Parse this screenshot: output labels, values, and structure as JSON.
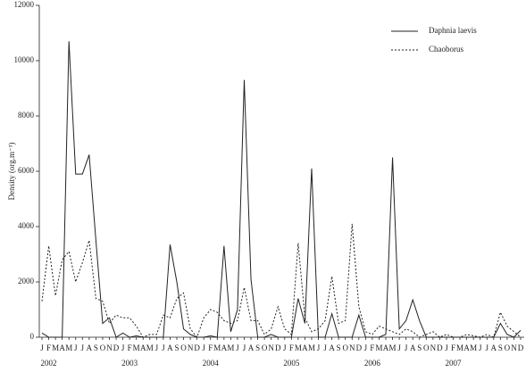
{
  "chart_data": {
    "type": "line",
    "y_label": "Density (org.m⁻³)",
    "categories": [
      "J",
      "F",
      "M",
      "A",
      "M",
      "J",
      "J",
      "A",
      "S",
      "O",
      "N",
      "D",
      "J",
      "F",
      "M",
      "A",
      "M",
      "J",
      "J",
      "A",
      "S",
      "O",
      "N",
      "D",
      "J",
      "F",
      "M",
      "A",
      "M",
      "J",
      "J",
      "A",
      "S",
      "O",
      "N",
      "D",
      "J",
      "F",
      "M",
      "A",
      "M",
      "J",
      "J",
      "A",
      "S",
      "O",
      "N",
      "D",
      "J",
      "F",
      "M",
      "A",
      "M",
      "J",
      "J",
      "A",
      "S",
      "O",
      "N",
      "D",
      "J",
      "F",
      "M",
      "A",
      "M",
      "J",
      "J",
      "A",
      "S",
      "O",
      "N",
      "D"
    ],
    "years": [
      "2002",
      "2003",
      "2004",
      "2005",
      "2006",
      "2007"
    ],
    "series": [
      {
        "name": "Daphnia laevis",
        "color": "#222222",
        "dash": "none",
        "values": [
          150,
          0,
          0,
          0,
          10700,
          5900,
          5900,
          6600,
          3500,
          500,
          700,
          0,
          150,
          0,
          50,
          0,
          0,
          0,
          0,
          3350,
          2000,
          300,
          100,
          0,
          0,
          50,
          0,
          3300,
          200,
          1000,
          9300,
          2100,
          0,
          0,
          100,
          0,
          0,
          0,
          1400,
          500,
          6100,
          0,
          0,
          850,
          0,
          0,
          0,
          800,
          0,
          0,
          0,
          100,
          6500,
          300,
          600,
          1350,
          600,
          0,
          0,
          0,
          0,
          0,
          0,
          0,
          0,
          0,
          0,
          0,
          500,
          100,
          0,
          250
        ]
      },
      {
        "name": "Chaoborus",
        "color": "#222222",
        "dash": "2,2",
        "values": [
          1300,
          3300,
          1500,
          2800,
          3100,
          2000,
          2700,
          3500,
          1400,
          1300,
          500,
          800,
          700,
          700,
          400,
          0,
          100,
          100,
          800,
          700,
          1400,
          1600,
          300,
          0,
          700,
          1000,
          900,
          600,
          500,
          600,
          1800,
          600,
          600,
          100,
          300,
          1100,
          300,
          100,
          3400,
          700,
          200,
          300,
          600,
          2200,
          500,
          600,
          4100,
          1100,
          200,
          100,
          400,
          300,
          200,
          100,
          300,
          200,
          0,
          100,
          200,
          0,
          100,
          0,
          0,
          100,
          50,
          0,
          100,
          0,
          900,
          400,
          200,
          0
        ]
      }
    ],
    "ylim": [
      0,
      12000
    ],
    "yticks": [
      0,
      2000,
      4000,
      6000,
      8000,
      10000,
      12000
    ],
    "legend": "upper-right"
  }
}
